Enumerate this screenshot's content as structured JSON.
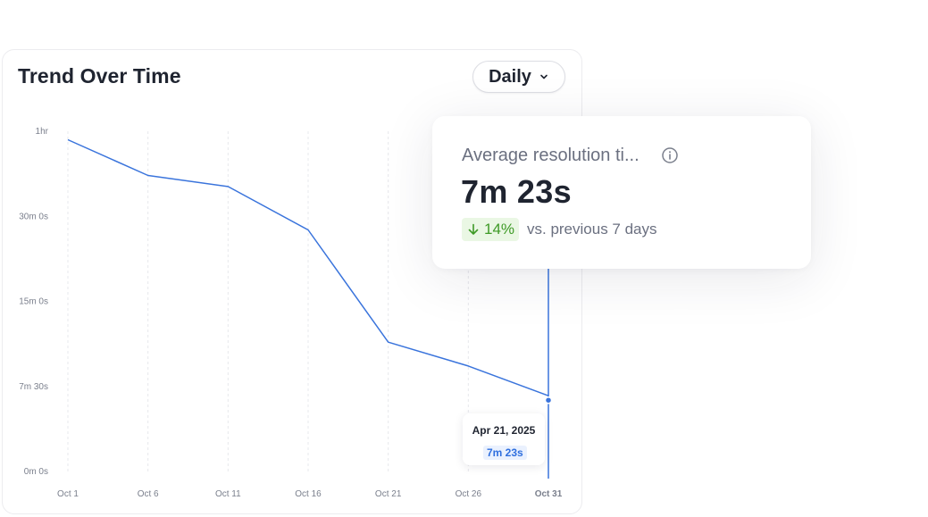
{
  "card": {
    "title": "Trend Over Time",
    "period_selector": {
      "selected": "Daily"
    }
  },
  "chart_data": {
    "type": "line",
    "title": "Trend Over Time",
    "xlabel": "",
    "ylabel": "",
    "categories": [
      "Oct 1",
      "Oct 6",
      "Oct 11",
      "Oct 16",
      "Oct 21",
      "Oct 26",
      "Oct 31"
    ],
    "x_ticks": [
      "Oct 1",
      "Oct 6",
      "Oct 11",
      "Oct 16",
      "Oct 21",
      "Oct 26",
      "Oct 31"
    ],
    "y_ticks": [
      "0m 0s",
      "7m 30s",
      "15m 0s",
      "30m 0s",
      "1hr"
    ],
    "y_tick_index": [
      0,
      1,
      2,
      3,
      4
    ],
    "ylim": [
      0,
      4
    ],
    "grid": "vertical dashed",
    "highlighted_category": "Oct 31",
    "series": [
      {
        "color": "#3a74dc",
        "values": [
          3.9,
          3.48,
          3.35,
          2.84,
          1.52,
          1.24,
          0.89
        ]
      }
    ]
  },
  "tooltip": {
    "date": "Apr 21, 2025",
    "value": "7m 23s"
  },
  "stat_card": {
    "label": "Average resolution ti...",
    "value": "7m 23s",
    "change": "14%",
    "change_direction": "down",
    "comparison": "vs. previous 7 days",
    "colors": {
      "positive": "#3e9a26",
      "positive_bg": "#eaf7e4"
    }
  }
}
